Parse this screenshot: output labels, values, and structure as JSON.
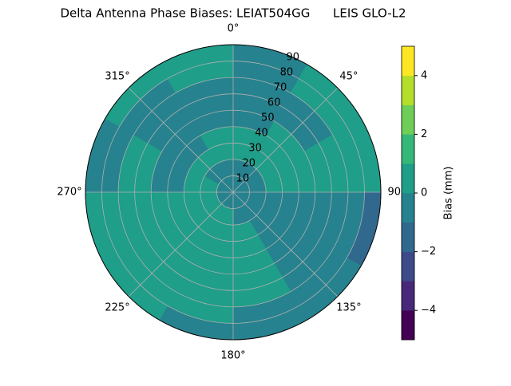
{
  "chart_data": {
    "type": "polar-contour",
    "title": "Delta Antenna Phase Biases: LEIAT504GG      LEIS GLO-L2",
    "colorbar_label": "Bias (mm)",
    "theta_bins": [
      0,
      30,
      60,
      90,
      120,
      150,
      180,
      210,
      240,
      270,
      300,
      330,
      360
    ],
    "r_bins": [
      0,
      10,
      20,
      30,
      40,
      50,
      60,
      70,
      80,
      90
    ],
    "values": [
      [
        -0.5,
        -0.5,
        -0.5,
        -0.5,
        -0.5,
        -0.5,
        -0.5,
        -0.5,
        -0.5,
        -0.5,
        -0.5,
        -0.5
      ],
      [
        -0.5,
        -0.5,
        -0.5,
        -0.5,
        -0.5,
        -0.5,
        0.5,
        0.5,
        0.5,
        0.5,
        -0.5,
        -0.5
      ],
      [
        0.5,
        0.5,
        0.5,
        -0.5,
        -0.5,
        0.5,
        0.5,
        0.5,
        0.5,
        0.5,
        0.5,
        0.5
      ],
      [
        0.5,
        0.5,
        0.5,
        -0.5,
        -0.5,
        0.5,
        0.5,
        0.5,
        0.5,
        -0.5,
        -0.5,
        0.5
      ],
      [
        -0.5,
        0.5,
        0.5,
        -0.5,
        -0.5,
        0.5,
        0.5,
        0.5,
        0.5,
        -0.5,
        -0.5,
        -0.5
      ],
      [
        -0.5,
        -0.5,
        0.5,
        -0.5,
        -0.5,
        0.5,
        0.5,
        0.5,
        0.5,
        0.5,
        -0.5,
        -0.5
      ],
      [
        -0.5,
        -0.5,
        0.5,
        -0.5,
        -0.5,
        0.5,
        0.5,
        0.5,
        0.5,
        0.5,
        -0.5,
        -0.5
      ],
      [
        -0.5,
        0.5,
        0.5,
        -0.5,
        -0.5,
        -0.5,
        0.5,
        0.5,
        0.5,
        -0.5,
        -0.5,
        0.5
      ],
      [
        -0.5,
        0.5,
        0.5,
        -1.5,
        -0.5,
        -0.5,
        -0.5,
        0.5,
        0.5,
        -0.5,
        0.5,
        0.5
      ]
    ],
    "levels": [
      -5,
      -4,
      -3,
      -2,
      -1,
      0,
      1,
      2,
      3,
      4,
      5
    ],
    "colors": [
      "#440154",
      "#482878",
      "#3e4989",
      "#31688e",
      "#26828e",
      "#1f9e89",
      "#35b779",
      "#6ece58",
      "#b5de2b",
      "#fde725"
    ],
    "rlim": [
      0,
      90
    ],
    "rticks": [
      10,
      20,
      30,
      40,
      50,
      60,
      70,
      80,
      90
    ],
    "thetaticks": [
      {
        "value": 0,
        "label": "0°"
      },
      {
        "value": 45,
        "label": "45°"
      },
      {
        "value": 90,
        "label": "90°"
      },
      {
        "value": 135,
        "label": "135°"
      },
      {
        "value": 180,
        "label": "180°"
      },
      {
        "value": 225,
        "label": "225°"
      },
      {
        "value": 270,
        "label": "270°"
      },
      {
        "value": 315,
        "label": "315°"
      }
    ],
    "clim": [
      -5,
      5
    ],
    "cticks": [
      {
        "value": -4,
        "label": "−4"
      },
      {
        "value": -2,
        "label": "−2"
      },
      {
        "value": 0,
        "label": "0"
      },
      {
        "value": 2,
        "label": "2"
      },
      {
        "value": 4,
        "label": "4"
      }
    ],
    "grid": true
  }
}
